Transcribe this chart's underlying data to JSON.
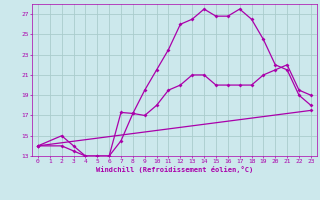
{
  "xlabel": "Windchill (Refroidissement éolien,°C)",
  "bg_color": "#cce8ec",
  "grid_color": "#aacccc",
  "line_color": "#aa00aa",
  "xlim": [
    -0.5,
    23.5
  ],
  "ylim": [
    13,
    28
  ],
  "xticks": [
    0,
    1,
    2,
    3,
    4,
    5,
    6,
    7,
    8,
    9,
    10,
    11,
    12,
    13,
    14,
    15,
    16,
    17,
    18,
    19,
    20,
    21,
    22,
    23
  ],
  "yticks": [
    13,
    15,
    17,
    19,
    21,
    23,
    25,
    27
  ],
  "line1_x": [
    0,
    2,
    3,
    4,
    5,
    6,
    7,
    8,
    9,
    10,
    11,
    12,
    13,
    14,
    15,
    16,
    17,
    18,
    19,
    20,
    21,
    22,
    23
  ],
  "line1_y": [
    14,
    15,
    14,
    13,
    13,
    13,
    17.3,
    17.2,
    19.5,
    21.5,
    23.5,
    26.0,
    26.5,
    27.5,
    26.8,
    26.8,
    27.5,
    26.5,
    24.5,
    22.0,
    21.5,
    19.0,
    18.0
  ],
  "line2_x": [
    0,
    2,
    3,
    4,
    5,
    6,
    7,
    8,
    9,
    10,
    11,
    12,
    13,
    14,
    15,
    16,
    17,
    18,
    19,
    20,
    21,
    22,
    23
  ],
  "line2_y": [
    14,
    14,
    13.5,
    13,
    13,
    13,
    14.5,
    17.2,
    17.0,
    18.0,
    19.5,
    20.0,
    21.0,
    21.0,
    20.0,
    20.0,
    20.0,
    20.0,
    21.0,
    21.5,
    22.0,
    19.5,
    19.0
  ],
  "line3_x": [
    0,
    23
  ],
  "line3_y": [
    14.0,
    17.5
  ]
}
